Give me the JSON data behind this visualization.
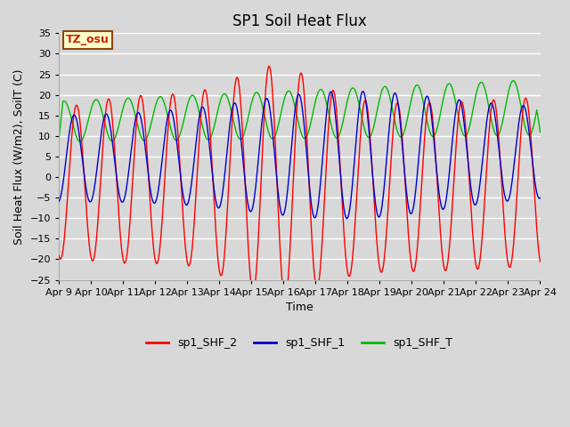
{
  "title": "SP1 Soil Heat Flux",
  "ylabel": "Soil Heat Flux (W/m2), SoilT (C)",
  "xlabel": "Time",
  "ylim": [
    -25,
    35
  ],
  "yticks": [
    -25,
    -20,
    -15,
    -10,
    -5,
    0,
    5,
    10,
    15,
    20,
    25,
    30,
    35
  ],
  "n_days": 15,
  "background_color": "#d8d8d8",
  "plot_bg_color": "#d8d8d8",
  "grid_color": "white",
  "line_colors": {
    "sp1_SHF_2": "#ff0000",
    "sp1_SHF_1": "#0000cc",
    "sp1_SHF_T": "#00bb00"
  },
  "tz_label": "TZ_osu",
  "tz_bg_color": "#ffffcc",
  "tz_border_color": "#8b4513",
  "tz_text_color": "#cc2200",
  "legend_labels": [
    "sp1_SHF_2",
    "sp1_SHF_1",
    "sp1_SHF_T"
  ],
  "x_tick_labels": [
    "Apr 9",
    "Apr 10",
    "Apr 11",
    "Apr 12",
    "Apr 13",
    "Apr 14",
    "Apr 15",
    "Apr 16",
    "Apr 17",
    "Apr 18",
    "Apr 19",
    "Apr 20",
    "Apr 21",
    "Apr 22",
    "Apr 23",
    "Apr 24"
  ],
  "title_fontsize": 12,
  "axis_label_fontsize": 9,
  "tick_fontsize": 8
}
